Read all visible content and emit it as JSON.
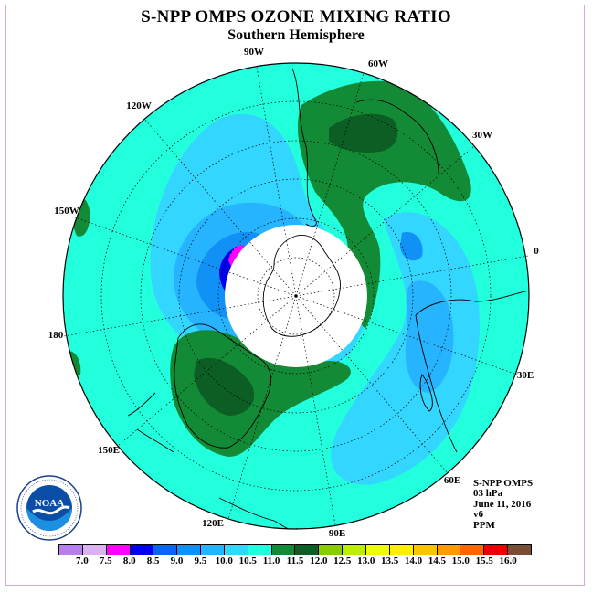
{
  "header": {
    "title": "S-NPP OMPS OZONE MIXING RATIO",
    "subtitle": "Southern Hemisphere"
  },
  "map": {
    "longitude_labels": [
      "90W",
      "60W",
      "120W",
      "30W",
      "150W",
      "0",
      "180",
      "30E",
      "150E",
      "60E",
      "120E",
      "90E"
    ]
  },
  "info_block": {
    "lines": [
      "S-NPP OMPS",
      "03 hPa",
      "June 11, 2016",
      "v6",
      "PPM"
    ]
  },
  "colorbar": {
    "colors": [
      "#b77ef0",
      "#dcb0f3",
      "#ff00ff",
      "#0000ee",
      "#0a66f0",
      "#1190f5",
      "#26b3ff",
      "#33d6ff",
      "#22ffdd",
      "#138a35",
      "#0d5e25",
      "#88cc00",
      "#bbee00",
      "#eeff00",
      "#ffee00",
      "#ffc400",
      "#ff9a00",
      "#ff6600",
      "#ee0000",
      "#7a4e35"
    ],
    "tick_labels": [
      "7.0",
      "7.5",
      "8.0",
      "8.5",
      "9.0",
      "9.5",
      "10.0",
      "10.5",
      "11.0",
      "11.5",
      "12.0",
      "12.5",
      "13.0",
      "13.5",
      "14.0",
      "14.5",
      "15.0",
      "15.5",
      "16.0"
    ]
  },
  "logo": {
    "text": "NOAA",
    "icon": "noaa-logo-icon"
  }
}
